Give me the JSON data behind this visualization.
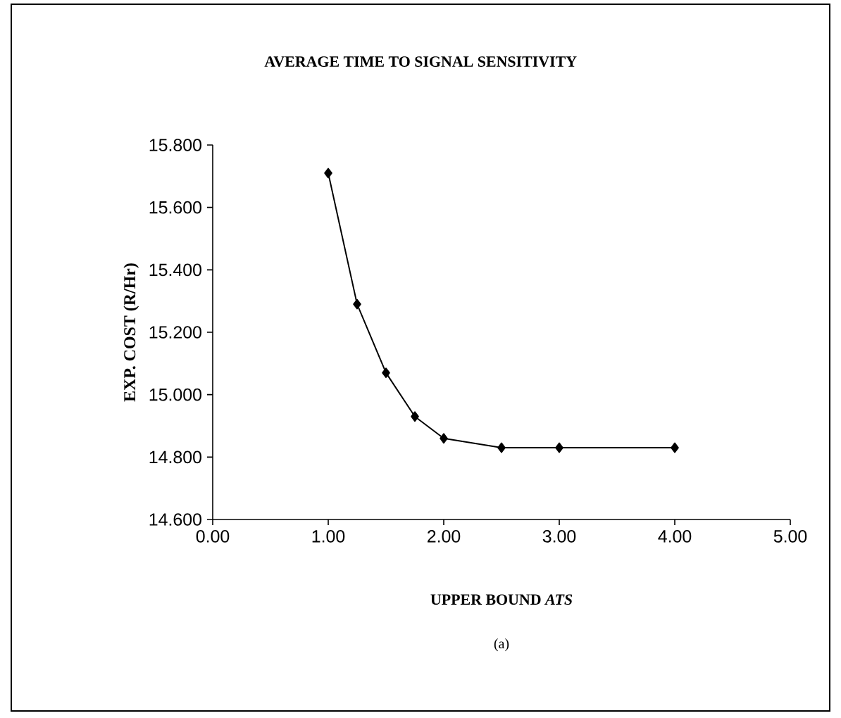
{
  "chart_data": {
    "type": "line",
    "title": "AVERAGE TIME TO SIGNAL SENSITIVITY",
    "xlabel": "UPPER BOUND *ATS*",
    "ylabel": "EXP. COST (R/Hr)",
    "annotations": [
      "(a)"
    ],
    "x": [
      1.0,
      1.25,
      1.5,
      1.75,
      2.0,
      2.5,
      3.0,
      4.0
    ],
    "series": [
      {
        "color": "#000000",
        "values": [
          15.71,
          15.29,
          15.07,
          14.93,
          14.86,
          14.83,
          14.83,
          14.83
        ]
      }
    ],
    "xlim": [
      0,
      5
    ],
    "xticks": [
      {
        "value": 0,
        "label": "0.00"
      },
      {
        "value": 1,
        "label": "1.00"
      },
      {
        "value": 2,
        "label": "2.00"
      },
      {
        "value": 3,
        "label": "3.00"
      },
      {
        "value": 4,
        "label": "4.00"
      },
      {
        "value": 5,
        "label": "5.00"
      }
    ],
    "ylim": [
      14.6,
      15.8
    ],
    "yticks": [
      {
        "value": 14.6,
        "label": "14.600"
      },
      {
        "value": 14.8,
        "label": "14.800"
      },
      {
        "value": 15.0,
        "label": "15.000"
      },
      {
        "value": 15.2,
        "label": "15.200"
      },
      {
        "value": 15.4,
        "label": "15.400"
      },
      {
        "value": 15.6,
        "label": "15.600"
      },
      {
        "value": 15.8,
        "label": "15.800"
      }
    ],
    "grid": false,
    "marker": "diamond",
    "line_style": "solid"
  }
}
